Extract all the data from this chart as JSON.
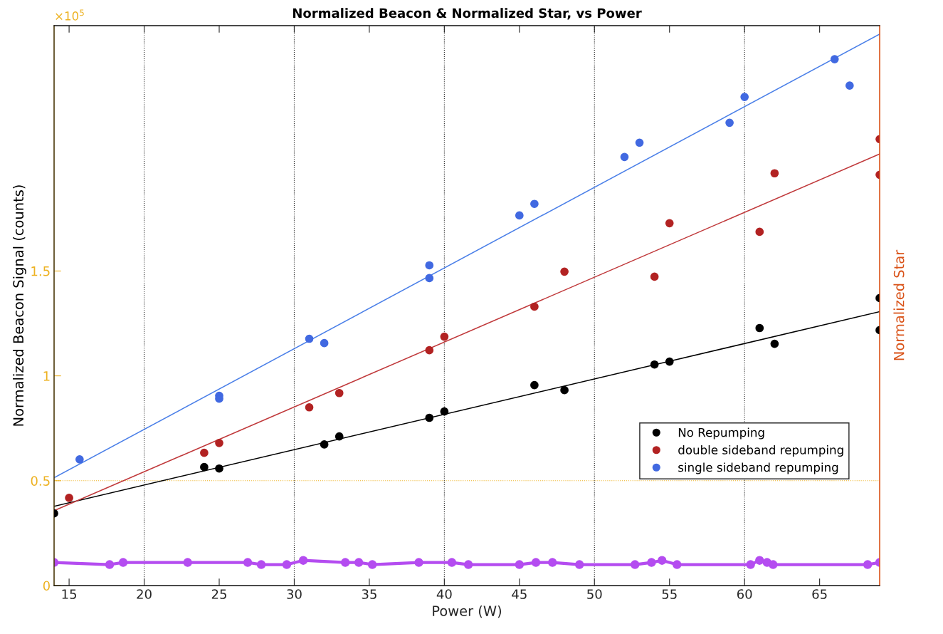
{
  "chart_data": {
    "type": "scatter",
    "title": "Normalized Beacon & Normalized Star, vs Power",
    "xlabel": "Power (W)",
    "ylabel": "Normalized Beacon Signal (counts)",
    "y2label": "Normalized Star",
    "annotations": [
      "×10$^{5}$"
    ],
    "xlim": [
      14,
      69
    ],
    "xticks": [
      15,
      20,
      25,
      30,
      35,
      40,
      45,
      50,
      55,
      60,
      65
    ],
    "ylim": [
      0,
      2.67
    ],
    "yticks": [
      0,
      0.5,
      1,
      1.5
    ],
    "marker": "circle",
    "legend": "lower right",
    "grid": false,
    "ref_lines": [
      {
        "axis": "y",
        "value": 0.5,
        "color": "#edb120",
        "line_style": "dotted"
      },
      {
        "axis": "x",
        "value": 20,
        "color": "#262626",
        "line_style": "dotted"
      },
      {
        "axis": "x",
        "value": 30,
        "color": "#262626",
        "line_style": "dotted"
      },
      {
        "axis": "x",
        "value": 40,
        "color": "#262626",
        "line_style": "dotted"
      },
      {
        "axis": "x",
        "value": 50,
        "color": "#262626",
        "line_style": "dotted"
      },
      {
        "axis": "x",
        "value": 60,
        "color": "#262626",
        "line_style": "dotted"
      }
    ],
    "series": [
      {
        "name": "No Repumping",
        "color": "#000000",
        "x": [
          14,
          24,
          25,
          32,
          33,
          39,
          40,
          46,
          48,
          54,
          55,
          61,
          62,
          69,
          69
        ],
        "values": [
          0.344,
          0.565,
          0.558,
          0.673,
          0.711,
          0.8,
          0.83,
          0.956,
          0.932,
          1.054,
          1.068,
          1.228,
          1.153,
          1.371,
          1.218
        ]
      },
      {
        "name": "double sideband repumping",
        "color": "#b22222",
        "x": [
          15,
          24,
          25,
          31,
          33,
          39,
          40,
          46,
          48,
          54,
          55,
          61,
          62,
          69,
          69
        ],
        "values": [
          0.418,
          0.633,
          0.68,
          0.85,
          0.918,
          1.122,
          1.187,
          1.33,
          1.497,
          1.473,
          1.728,
          1.687,
          1.966,
          2.129,
          1.959
        ]
      },
      {
        "name": "single sideband repumping",
        "color": "#4169e1",
        "x": [
          15.7,
          25,
          25,
          31,
          32,
          39,
          39,
          45,
          46,
          52,
          53,
          59,
          60,
          66,
          67
        ],
        "values": [
          0.602,
          0.905,
          0.891,
          1.177,
          1.156,
          1.527,
          1.466,
          1.765,
          1.82,
          2.044,
          2.112,
          2.207,
          2.33,
          2.51,
          2.384
        ]
      },
      {
        "type": "line",
        "marker": "none",
        "color": "#000000",
        "x": [
          14,
          69
        ],
        "values": [
          0.378,
          1.306
        ]
      },
      {
        "type": "line",
        "marker": "none",
        "color": "#c0393b",
        "x": [
          14,
          69
        ],
        "values": [
          0.357,
          2.058
        ]
      },
      {
        "type": "line",
        "marker": "none",
        "color": "#4a7fe8",
        "x": [
          14,
          69
        ],
        "values": [
          0.514,
          2.63
        ]
      },
      {
        "type": "line",
        "marker": "circle",
        "color": "#b44cf0",
        "x": [
          14.0,
          17.7,
          18.6,
          22.9,
          26.9,
          27.8,
          29.5,
          30.6,
          33.4,
          34.3,
          35.2,
          38.3,
          40.5,
          41.6,
          45.0,
          46.1,
          47.2,
          49.0,
          52.7,
          53.8,
          54.5,
          55.5,
          60.4,
          61.0,
          61.5,
          61.9,
          68.2,
          69.0
        ],
        "values": [
          0.11,
          0.1,
          0.11,
          0.11,
          0.11,
          0.1,
          0.1,
          0.12,
          0.11,
          0.11,
          0.1,
          0.11,
          0.11,
          0.1,
          0.1,
          0.11,
          0.11,
          0.1,
          0.1,
          0.11,
          0.12,
          0.1,
          0.1,
          0.12,
          0.11,
          0.1,
          0.1,
          0.11
        ]
      }
    ]
  }
}
